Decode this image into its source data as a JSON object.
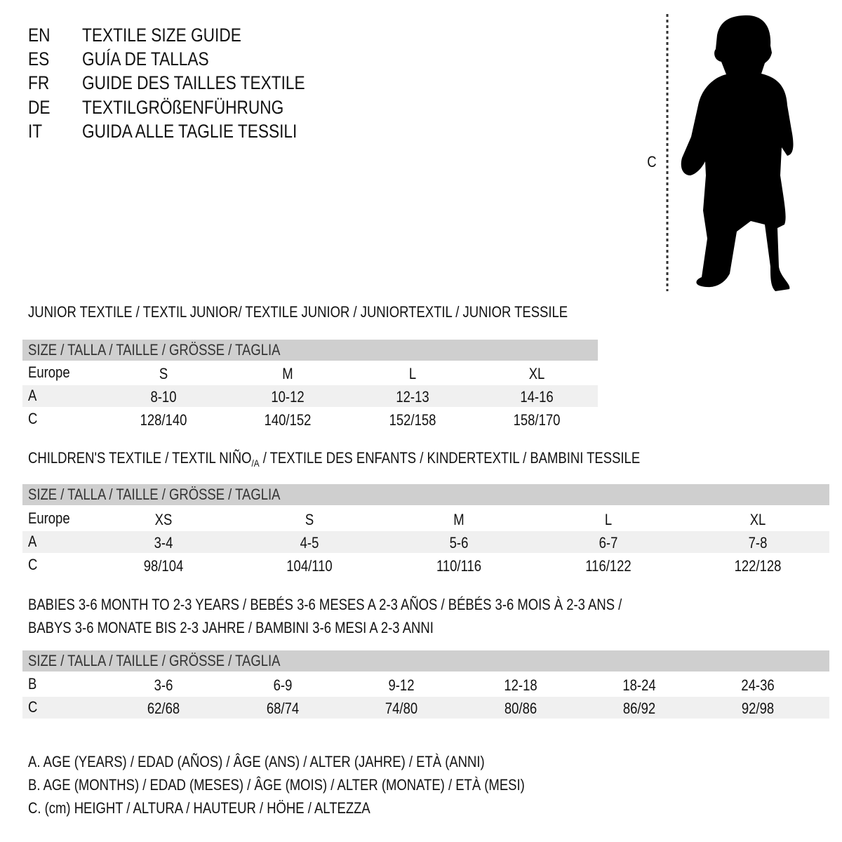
{
  "header": {
    "lines": [
      {
        "code": "EN",
        "text": "TEXTILE SIZE GUIDE"
      },
      {
        "code": "ES",
        "text": "GUÍA DE TALLAS"
      },
      {
        "code": "FR",
        "text": "GUIDE DES TAILLES TEXTILE"
      },
      {
        "code": "DE",
        "text": "TEXTILGRÖßENFÜHRUNG"
      },
      {
        "code": "IT",
        "text": "GUIDA ALLE TAGLIE TESSILI"
      }
    ]
  },
  "figure": {
    "measure_label": "C",
    "icon": "child-silhouette"
  },
  "size_header": "SIZE / TALLA / TAILLE / GRÖSSE / TAGLIA",
  "junior": {
    "title": "JUNIOR TEXTILE / TEXTIL JUNIOR/ TEXTILE JUNIOR / JUNIORTEXTIL / JUNIOR TESSILE",
    "rows": [
      {
        "label": "Europe",
        "values": [
          "S",
          "M",
          "L",
          "XL"
        ]
      },
      {
        "label": "A",
        "values": [
          "8-10",
          "10-12",
          "12-13",
          "14-16"
        ]
      },
      {
        "label": "C",
        "values": [
          "128/140",
          "140/152",
          "152/158",
          "158/170"
        ]
      }
    ]
  },
  "children": {
    "title_a": "CHILDREN'S TEXTILE / TEXTIL NIÑO",
    "title_sub": "/A",
    "title_b": " / TEXTILE DES ENFANTS / KINDERTEXTIL / BAMBINI TESSILE",
    "rows": [
      {
        "label": "Europe",
        "values": [
          "XS",
          "S",
          "M",
          "L",
          "XL"
        ]
      },
      {
        "label": "A",
        "values": [
          "3-4",
          "4-5",
          "5-6",
          "6-7",
          "7-8"
        ]
      },
      {
        "label": "C",
        "values": [
          "98/104",
          "104/110",
          "110/116",
          "116/122",
          "122/128"
        ]
      }
    ]
  },
  "babies": {
    "title_line1": "BABIES 3-6 MONTH TO 2-3 YEARS / BEBÉS 3-6 MESES A 2-3 AÑOS / BÉBÉS 3-6 MOIS À 2-3 ANS /",
    "title_line2": "BABYS 3-6 MONATE BIS 2-3 JAHRE / BAMBINI 3-6 MESI A 2-3 ANNI",
    "rows": [
      {
        "label": "B",
        "values": [
          "3-6",
          "6-9",
          "9-12",
          "12-18",
          "18-24",
          "24-36"
        ]
      },
      {
        "label": "C",
        "values": [
          "62/68",
          "68/74",
          "74/80",
          "80/86",
          "86/92",
          "92/98"
        ]
      }
    ]
  },
  "legend": [
    "A. AGE (YEARS) / EDAD (AÑOS) / ÂGE (ANS) / ALTER (JAHRE) / ETÀ (ANNI)",
    "B. AGE (MONTHS) / EDAD (MESES) / ÂGE (MOIS) / ALTER (MONATE) / ETÀ (MESI)",
    "C. (cm) HEIGHT / ALTURA / HAUTEUR / HÖHE / ALTEZZA"
  ],
  "colors": {
    "header_bar": "#cfcfcf",
    "alt_row": "#f0f0f0",
    "text": "#111111"
  }
}
